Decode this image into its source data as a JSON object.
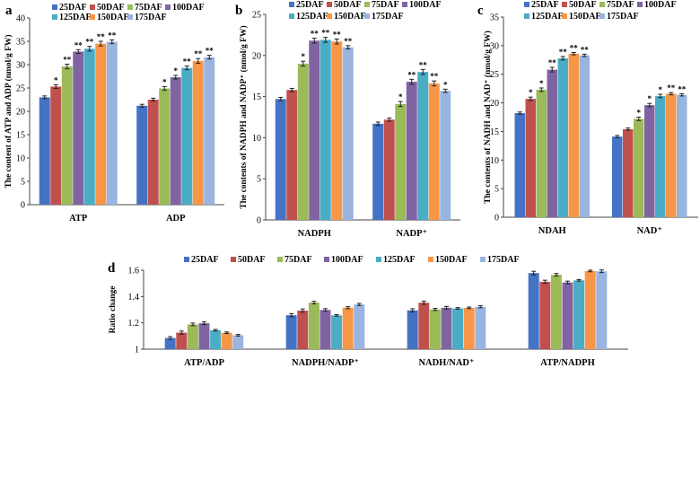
{
  "colors": [
    "#4472C4",
    "#C0504D",
    "#9BBB59",
    "#8064A2",
    "#4BACC6",
    "#F79646",
    "#9AB4E0"
  ],
  "chart_data": [
    {
      "panel": "a",
      "type": "bar",
      "ylabel": "The content of ATP and ADP (nmol/g FW)",
      "ylim": [
        0,
        40
      ],
      "yticks": [
        "0",
        "5",
        "10",
        "15",
        "20",
        "25",
        "30",
        "35",
        "40"
      ],
      "categories": [
        "ATP",
        "ADP"
      ],
      "series_names": [
        "25DAF",
        "50DAF",
        "75DAF",
        "100DAF",
        "125DAF",
        "150DAF",
        "175DAF"
      ],
      "values": [
        [
          23.0,
          21.2
        ],
        [
          25.3,
          22.5
        ],
        [
          29.6,
          24.9
        ],
        [
          32.8,
          27.3
        ],
        [
          33.4,
          29.3
        ],
        [
          34.5,
          30.8
        ],
        [
          34.9,
          31.6
        ]
      ],
      "errors": [
        [
          0.3,
          0.3
        ],
        [
          0.4,
          0.3
        ],
        [
          0.5,
          0.4
        ],
        [
          0.4,
          0.4
        ],
        [
          0.5,
          0.4
        ],
        [
          0.5,
          0.5
        ],
        [
          0.4,
          0.4
        ]
      ],
      "significance": [
        [
          "",
          ""
        ],
        [
          "*",
          ""
        ],
        [
          "**",
          "*"
        ],
        [
          "**",
          "*"
        ],
        [
          "**",
          "**"
        ],
        [
          "**",
          "**"
        ],
        [
          "**",
          "**"
        ]
      ]
    },
    {
      "panel": "b",
      "type": "bar",
      "ylabel": "The contents of NADPH and NADP⁺ (nmol/g FW)",
      "ylim": [
        0,
        25
      ],
      "yticks": [
        "0",
        "5",
        "10",
        "15",
        "20",
        "25"
      ],
      "categories": [
        "NADPH",
        "NADP⁺"
      ],
      "series_names": [
        "25DAF",
        "50DAF",
        "75DAF",
        "100DAF",
        "125DAF",
        "150DAF",
        "175DAF"
      ],
      "values": [
        [
          14.7,
          11.7
        ],
        [
          15.8,
          12.2
        ],
        [
          19.0,
          14.1
        ],
        [
          21.8,
          16.8
        ],
        [
          21.9,
          18.0
        ],
        [
          21.7,
          16.6
        ],
        [
          21.0,
          15.7
        ]
      ],
      "errors": [
        [
          0.2,
          0.2
        ],
        [
          0.2,
          0.2
        ],
        [
          0.3,
          0.3
        ],
        [
          0.3,
          0.3
        ],
        [
          0.3,
          0.3
        ],
        [
          0.3,
          0.3
        ],
        [
          0.2,
          0.2
        ]
      ],
      "significance": [
        [
          "",
          ""
        ],
        [
          "",
          ""
        ],
        [
          "*",
          "*"
        ],
        [
          "**",
          "**"
        ],
        [
          "**",
          "**"
        ],
        [
          "**",
          "**"
        ],
        [
          "**",
          "*"
        ]
      ]
    },
    {
      "panel": "c",
      "type": "bar",
      "ylabel": "The contents of NADH and NAD⁺ (nmol/g FW)",
      "ylim": [
        0,
        35
      ],
      "yticks": [
        "0",
        "5",
        "10",
        "15",
        "20",
        "25",
        "30",
        "35"
      ],
      "categories": [
        "NDAH",
        "NAD⁺"
      ],
      "series_names": [
        "25DAF",
        "50DAF",
        "75DAF",
        "100DAF",
        "125DAF",
        "150DAF",
        "175DAF"
      ],
      "values": [
        [
          18.2,
          14.1
        ],
        [
          20.7,
          15.4
        ],
        [
          22.3,
          17.2
        ],
        [
          25.8,
          19.6
        ],
        [
          27.8,
          21.2
        ],
        [
          28.6,
          21.6
        ],
        [
          28.3,
          21.4
        ]
      ],
      "errors": [
        [
          0.2,
          0.2
        ],
        [
          0.3,
          0.2
        ],
        [
          0.3,
          0.3
        ],
        [
          0.4,
          0.3
        ],
        [
          0.3,
          0.3
        ],
        [
          0.2,
          0.2
        ],
        [
          0.2,
          0.2
        ]
      ],
      "significance": [
        [
          "",
          ""
        ],
        [
          "*",
          ""
        ],
        [
          "*",
          "*"
        ],
        [
          "**",
          "*"
        ],
        [
          "**",
          "*"
        ],
        [
          "**",
          "**"
        ],
        [
          "**",
          "**"
        ]
      ]
    },
    {
      "panel": "d",
      "type": "bar",
      "ylabel": "Ratio change",
      "ylim": [
        1,
        1.6
      ],
      "yticks": [
        "1",
        "1.2",
        "1.4",
        "1.6"
      ],
      "categories": [
        "ATP/ADP",
        "NADPH/NADP⁺",
        "NADH/NAD⁺",
        "ATP/NADPH"
      ],
      "series_names": [
        "25DAF",
        "50DAF",
        "75DAF",
        "100DAF",
        "125DAF",
        "150DAF",
        "175DAF"
      ],
      "values": [
        [
          1.085,
          1.258,
          1.295,
          1.578
        ],
        [
          1.126,
          1.293,
          1.353,
          1.512
        ],
        [
          1.188,
          1.354,
          1.302,
          1.565
        ],
        [
          1.197,
          1.298,
          1.315,
          1.507
        ],
        [
          1.144,
          1.257,
          1.31,
          1.523
        ],
        [
          1.125,
          1.315,
          1.314,
          1.594
        ],
        [
          1.106,
          1.34,
          1.322,
          1.592
        ]
      ],
      "errors": [
        [
          0.01,
          0.012,
          0.012,
          0.014
        ],
        [
          0.012,
          0.012,
          0.012,
          0.012
        ],
        [
          0.01,
          0.01,
          0.008,
          0.01
        ],
        [
          0.01,
          0.01,
          0.01,
          0.01
        ],
        [
          0.006,
          0.006,
          0.006,
          0.006
        ],
        [
          0.006,
          0.008,
          0.006,
          0.006
        ],
        [
          0.006,
          0.008,
          0.008,
          0.01
        ]
      ],
      "significance": []
    }
  ]
}
